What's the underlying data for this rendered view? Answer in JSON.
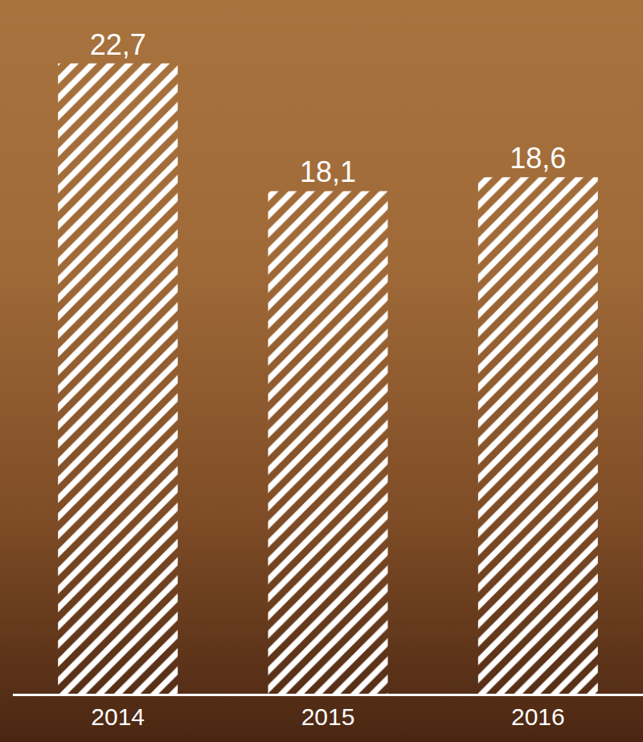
{
  "chart_data": {
    "type": "bar",
    "categories": [
      "2014",
      "2015",
      "2016"
    ],
    "values": [
      22.7,
      18.1,
      18.6
    ],
    "value_labels": [
      "22,7",
      "18,1",
      "18,6"
    ],
    "color": "#ffffff",
    "marker": "hatch",
    "ylim": [
      0,
      24.4
    ],
    "grid": false,
    "data_labels": true,
    "tick_labels": "x"
  }
}
